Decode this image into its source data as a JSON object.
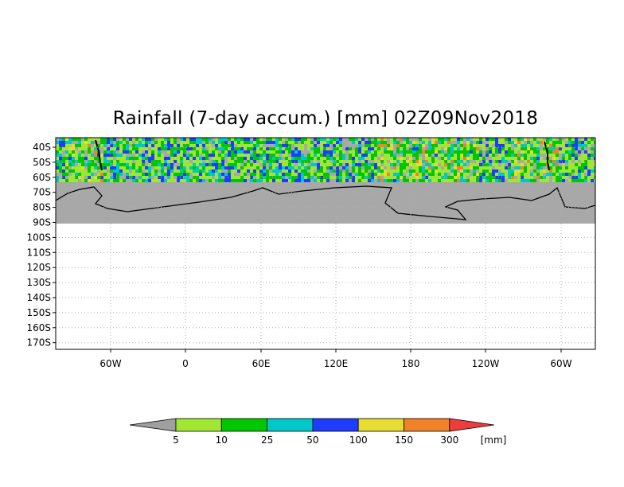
{
  "title": "Rainfall (7-day accum.) [mm] 02Z09Nov2018",
  "chart_data": {
    "type": "heatmap",
    "title": "Rainfall (7-day accum.) [mm] 02Z09Nov2018",
    "y_ticks": [
      "40S",
      "50S",
      "60S",
      "70S",
      "80S",
      "90S",
      "100S",
      "110S",
      "120S",
      "130S",
      "140S",
      "150S",
      "160S",
      "170S"
    ],
    "x_ticks": [
      "60W",
      "0",
      "60E",
      "120E",
      "180",
      "120W",
      "60W"
    ],
    "colorbar": {
      "unit": "[mm]",
      "levels": [
        "5",
        "10",
        "25",
        "50",
        "100",
        "150",
        "300"
      ],
      "colors": [
        "#a0a0a0",
        "#a0e632",
        "#00c800",
        "#00c8c8",
        "#1e3cff",
        "#e6dc32",
        "#f08228",
        "#f03c3c"
      ]
    },
    "missing_color": "#a8a8a8",
    "grid": true
  }
}
